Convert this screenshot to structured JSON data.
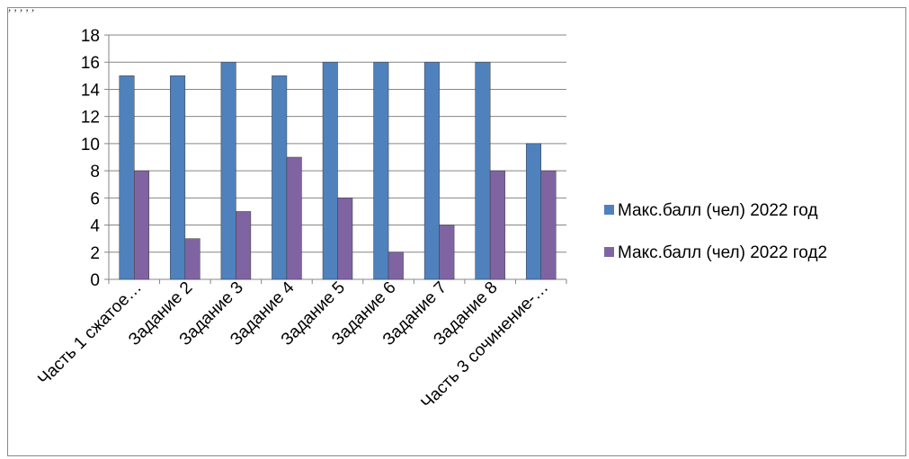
{
  "header_fragment": ", , , , ,",
  "chart_data": {
    "type": "bar",
    "title": "",
    "xlabel": "",
    "ylabel": "",
    "categories": [
      "Часть 1 сжатое…",
      "Задание 2",
      "Задание 3",
      "Задание 4",
      "Задание 5",
      "Задание 6",
      "Задание 7",
      "Задание 8",
      "Часть 3 сочинение-…"
    ],
    "series": [
      {
        "name": "Макс.балл (чел) 2022 год",
        "color": "#4f81bd",
        "values": [
          15,
          15,
          16,
          15,
          16,
          16,
          16,
          16,
          10
        ]
      },
      {
        "name": "Макс.балл (чел) 2022 год2",
        "color": "#8064a2",
        "values": [
          8,
          3,
          5,
          9,
          6,
          2,
          4,
          8,
          8
        ]
      }
    ],
    "ylim": [
      0,
      18
    ],
    "yticks": [
      0,
      2,
      4,
      6,
      8,
      10,
      12,
      14,
      16,
      18
    ],
    "grid": true,
    "legend_position": "right"
  }
}
